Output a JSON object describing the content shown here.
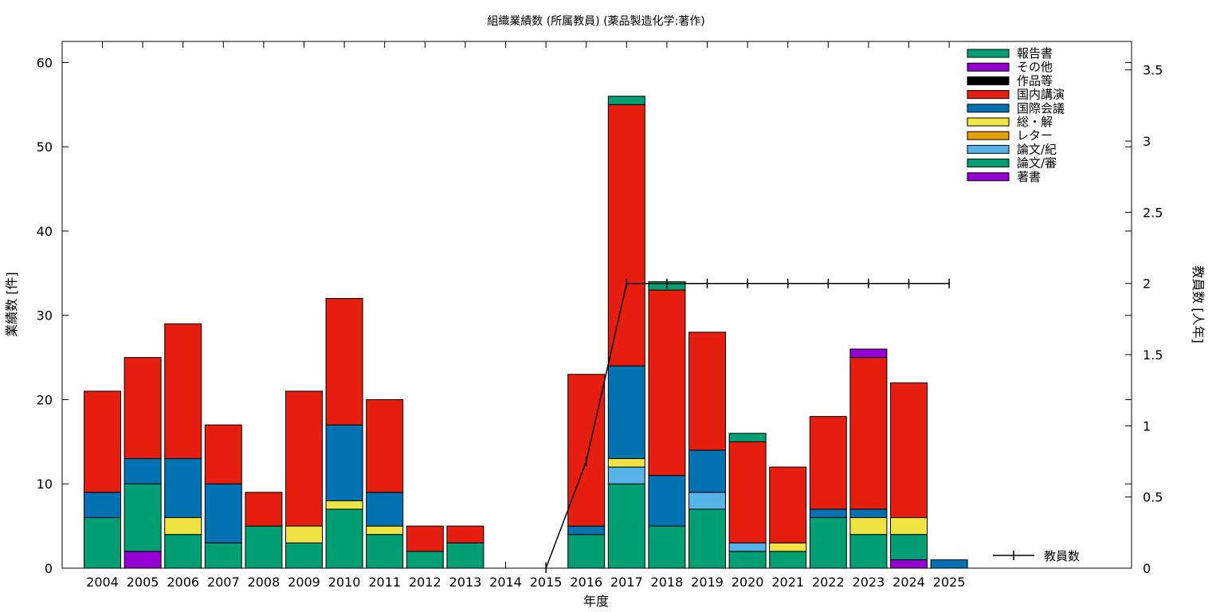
{
  "chart_data": {
    "type": "bar",
    "title": "組織業績数 (所属教員) (薬品製造化学:著作)",
    "xlabel": "年度",
    "ylabel": "業績数 [件]",
    "y2label": "教員数 [人年]",
    "ylim": [
      0,
      62.5
    ],
    "y2lim": [
      0,
      3.7
    ],
    "yticks": [
      "0",
      "10",
      "20",
      "30",
      "40",
      "50",
      "60"
    ],
    "y2ticks": [
      "0",
      "0.5",
      "1",
      "1.5",
      "2",
      "2.5",
      "3",
      "3.5"
    ],
    "legend_position": "top-right",
    "categories": [
      "2004",
      "2005",
      "2006",
      "2007",
      "2008",
      "2009",
      "2010",
      "2011",
      "2012",
      "2013",
      "2014",
      "2015",
      "2016",
      "2017",
      "2018",
      "2019",
      "2020",
      "2021",
      "2022",
      "2023",
      "2024",
      "2025"
    ],
    "series": [
      {
        "name": "著書",
        "color": "#9400d3",
        "values": [
          0,
          2,
          0,
          0,
          0,
          0,
          0,
          0,
          0,
          0,
          0,
          0,
          0,
          0,
          0,
          0,
          0,
          0,
          0,
          0,
          1,
          0
        ]
      },
      {
        "name": "論文/審",
        "color": "#009e73",
        "values": [
          6,
          8,
          4,
          3,
          5,
          3,
          7,
          4,
          2,
          3,
          0,
          0,
          4,
          10,
          5,
          7,
          2,
          2,
          6,
          4,
          3,
          0
        ]
      },
      {
        "name": "論文/紀",
        "color": "#56b4e9",
        "values": [
          0,
          0,
          0,
          0,
          0,
          0,
          0,
          0,
          0,
          0,
          0,
          0,
          0,
          2,
          0,
          2,
          1,
          0,
          0,
          0,
          0,
          0
        ]
      },
      {
        "name": "レター",
        "color": "#e69f00",
        "values": [
          0,
          0,
          0,
          0,
          0,
          0,
          0,
          0,
          0,
          0,
          0,
          0,
          0,
          0,
          0,
          0,
          0,
          0,
          0,
          0,
          0,
          0
        ]
      },
      {
        "name": "総・解",
        "color": "#f0e442",
        "values": [
          0,
          0,
          2,
          0,
          0,
          2,
          1,
          1,
          0,
          0,
          0,
          0,
          0,
          1,
          0,
          0,
          0,
          1,
          0,
          2,
          2,
          0
        ]
      },
      {
        "name": "国際会議",
        "color": "#0072b2",
        "values": [
          3,
          3,
          7,
          7,
          0,
          0,
          9,
          4,
          0,
          0,
          0,
          0,
          1,
          11,
          6,
          5,
          0,
          0,
          1,
          1,
          0,
          1
        ]
      },
      {
        "name": "国内講演",
        "color": "#e51e10",
        "values": [
          12,
          12,
          16,
          7,
          4,
          16,
          15,
          11,
          3,
          2,
          0,
          0,
          18,
          31,
          22,
          14,
          12,
          9,
          11,
          18,
          16,
          0
        ]
      },
      {
        "name": "作品等",
        "color": "#000000",
        "values": [
          0,
          0,
          0,
          0,
          0,
          0,
          0,
          0,
          0,
          0,
          0,
          0,
          0,
          0,
          0,
          0,
          0,
          0,
          0,
          0,
          0,
          0
        ]
      },
      {
        "name": "その他",
        "color": "#9400d3",
        "values": [
          0,
          0,
          0,
          0,
          0,
          0,
          0,
          0,
          0,
          0,
          0,
          0,
          0,
          0,
          0,
          0,
          0,
          0,
          0,
          1,
          0,
          0
        ]
      },
      {
        "name": "報告書",
        "color": "#009e73",
        "values": [
          0,
          0,
          0,
          0,
          0,
          0,
          0,
          0,
          0,
          0,
          0,
          0,
          0,
          1,
          1,
          0,
          1,
          0,
          0,
          0,
          0,
          0
        ]
      }
    ],
    "line_series": {
      "name": "教員数",
      "color": "#000000",
      "axis": "y2",
      "categories": [
        "2015",
        "2016",
        "2017",
        "2018",
        "2019",
        "2020",
        "2021",
        "2022",
        "2023",
        "2024",
        "2025"
      ],
      "values": [
        0,
        0.75,
        2,
        2,
        2,
        2,
        2,
        2,
        2,
        2,
        2
      ]
    }
  }
}
